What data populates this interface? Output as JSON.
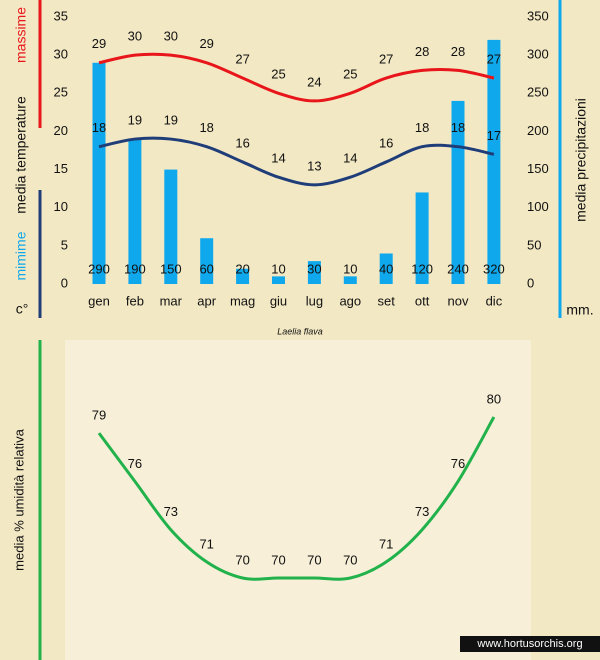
{
  "chart_data": [
    {
      "type": "combo",
      "categories": [
        "gen",
        "feb",
        "mar",
        "apr",
        "mag",
        "giu",
        "lug",
        "ago",
        "set",
        "ott",
        "nov",
        "dic"
      ],
      "ylim": [
        0,
        35
      ],
      "yticks": [
        0,
        5,
        10,
        15,
        20,
        25,
        30,
        35
      ],
      "y2lim": [
        0,
        350
      ],
      "y2ticks": [
        0,
        50,
        100,
        150,
        200,
        250,
        300,
        350
      ],
      "y_label_max": "massime",
      "y_label": "media  temperature",
      "y_label_min": "mimime",
      "y_unit": "c°",
      "y2_label": "media  precipitazioni",
      "y2_unit": "mm.",
      "caption": "Laelia flava",
      "series": [
        {
          "type": "bar",
          "axis": "y2",
          "color": "#0fa8ec",
          "values": [
            290,
            190,
            150,
            60,
            20,
            10,
            30,
            10,
            40,
            120,
            240,
            320
          ]
        },
        {
          "type": "line",
          "name": "massime",
          "color": "#e8161b",
          "values": [
            29,
            30,
            30,
            29,
            27,
            25,
            24,
            25,
            27,
            28,
            28,
            27
          ]
        },
        {
          "type": "line",
          "name": "mimime",
          "color": "#1f3d78",
          "values": [
            18,
            19,
            19,
            18,
            16,
            14,
            13,
            14,
            16,
            18,
            18,
            17
          ]
        }
      ]
    },
    {
      "type": "line",
      "y_label": "media % umidità relativa",
      "color": "#22b24c",
      "values": [
        79,
        76,
        73,
        71,
        70,
        70,
        70,
        70,
        71,
        73,
        76,
        80
      ]
    }
  ],
  "watermark": "www.hortusorchis.org"
}
